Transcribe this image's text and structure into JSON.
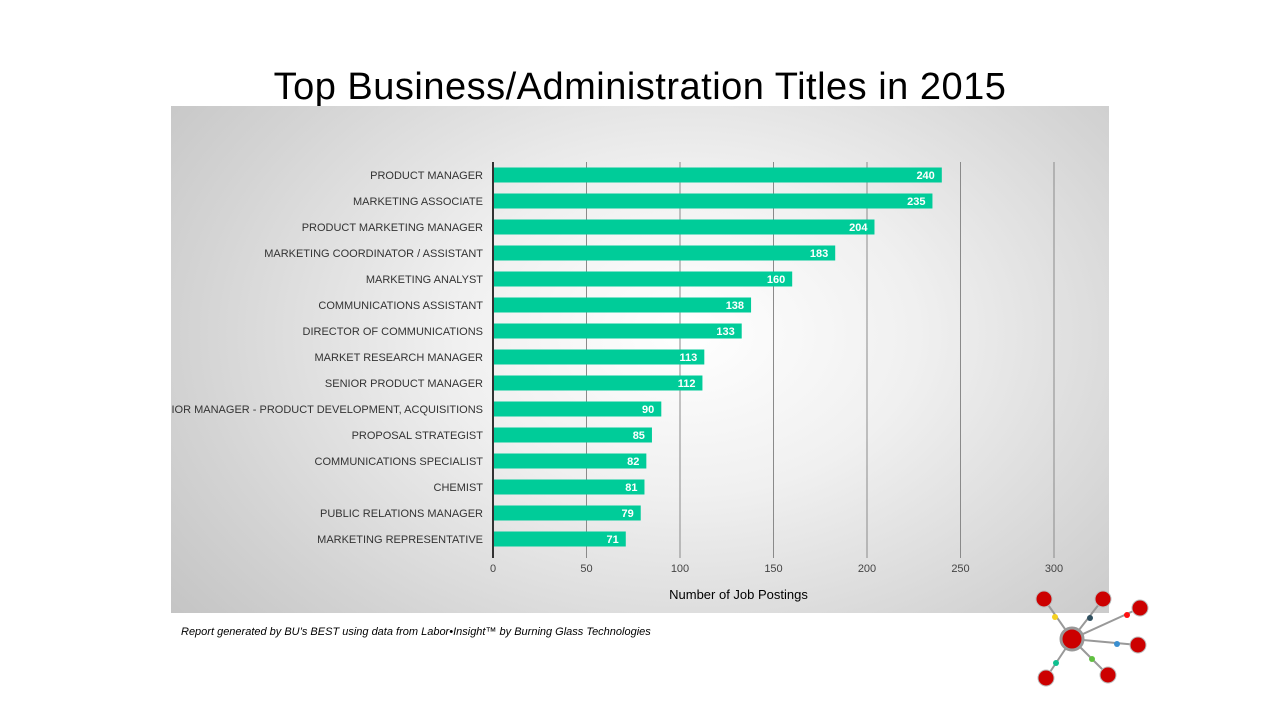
{
  "chart_data": {
    "type": "bar",
    "orientation": "horizontal",
    "title": "Top Business/Administration Titles in 2015",
    "xlabel": "Number of Job Postings",
    "ylabel": "",
    "xlim": [
      0,
      300
    ],
    "xticks": [
      0,
      50,
      100,
      150,
      200,
      250,
      300
    ],
    "grid": true,
    "categories": [
      "PRODUCT MANAGER",
      "MARKETING ASSOCIATE",
      "PRODUCT MARKETING MANAGER",
      "MARKETING COORDINATOR / ASSISTANT",
      "MARKETING ANALYST",
      "COMMUNICATIONS ASSISTANT",
      "DIRECTOR OF COMMUNICATIONS",
      "MARKET RESEARCH MANAGER",
      "SENIOR PRODUCT MANAGER",
      "SENIOR MANAGER - PRODUCT DEVELOPMENT, ACQUISITIONS",
      "PROPOSAL STRATEGIST",
      "COMMUNICATIONS SPECIALIST",
      "CHEMIST",
      "PUBLIC RELATIONS MANAGER",
      "MARKETING REPRESENTATIVE"
    ],
    "values": [
      240,
      235,
      204,
      183,
      160,
      138,
      133,
      113,
      112,
      90,
      85,
      82,
      81,
      79,
      71
    ],
    "bar_color": "#00CC99"
  },
  "footer": "Report generated by BU’s BEST using data from Labor•Insight™ by Burning Glass Technologies",
  "logo": "network-node-logo"
}
